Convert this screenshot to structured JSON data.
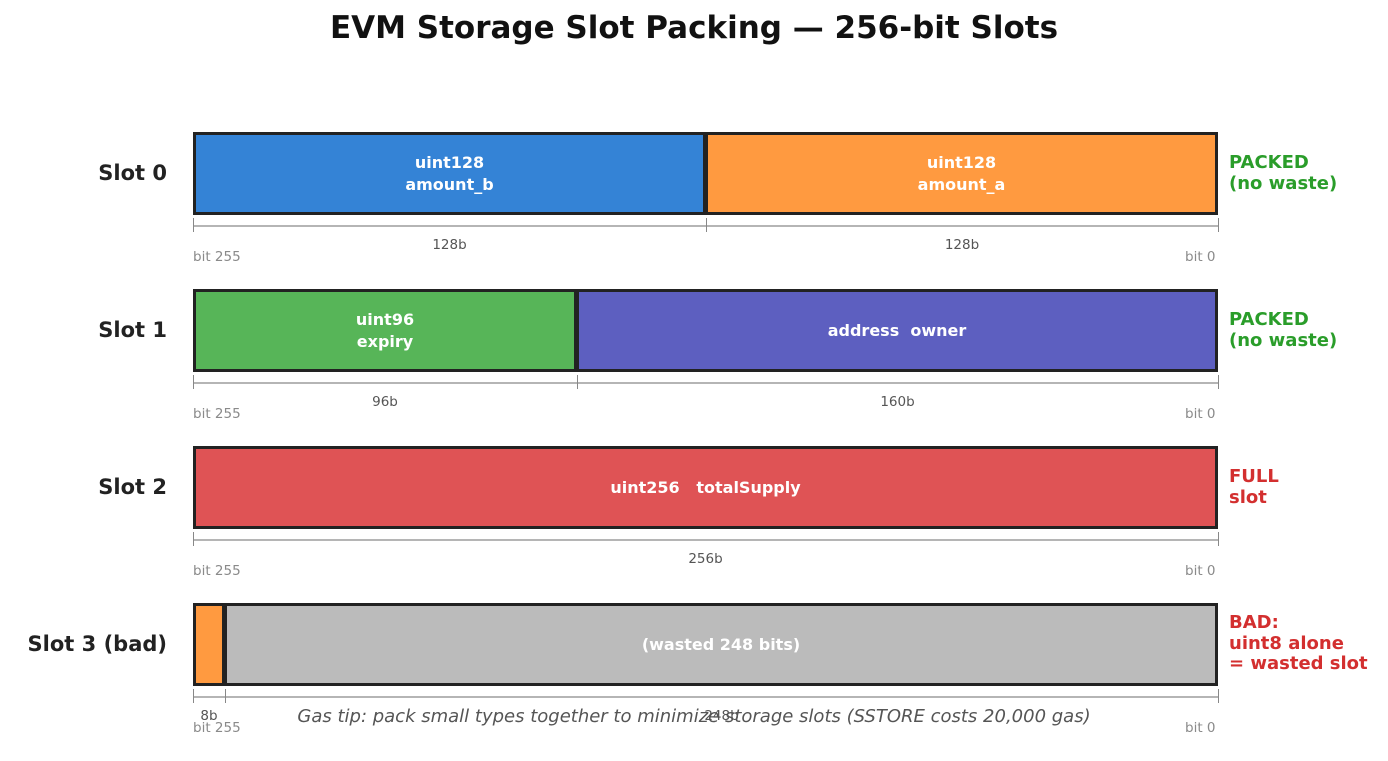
{
  "title": "EVM Storage Slot Packing — 256-bit Slots",
  "footer": "Gas tip: pack small types together to minimize storage slots (SSTORE costs 20,000 gas)",
  "bit_high": "bit 255",
  "bit_low": "bit 0",
  "slots": [
    {
      "label": "Slot 0",
      "status": "PACKED\n(no waste)",
      "status_color": "#2a9d2a",
      "segments": [
        {
          "text": "uint128\namount_b",
          "bits": 128,
          "bits_label": "128b",
          "color": "#3483d6"
        },
        {
          "text": "uint128\namount_a",
          "bits": 128,
          "bits_label": "128b",
          "color": "#ff9a40"
        }
      ]
    },
    {
      "label": "Slot 1",
      "status": "PACKED\n(no waste)",
      "status_color": "#2a9d2a",
      "segments": [
        {
          "text": "uint96\nexpiry",
          "bits": 96,
          "bits_label": "96b",
          "color": "#57b558"
        },
        {
          "text": "address  owner",
          "bits": 160,
          "bits_label": "160b",
          "color": "#5d5fc0"
        }
      ]
    },
    {
      "label": "Slot 2",
      "status": "FULL\nslot",
      "status_color": "#d32f2f",
      "segments": [
        {
          "text": "uint256   totalSupply",
          "bits": 256,
          "bits_label": "256b",
          "color": "#df5355"
        }
      ]
    },
    {
      "label": "Slot 3 (bad)",
      "status": "BAD:\nuint8 alone\n= wasted slot",
      "status_color": "#d32f2f",
      "segments": [
        {
          "text": "",
          "bits": 8,
          "bits_label": "8b",
          "color": "#ff9a40"
        },
        {
          "text": "(wasted 248 bits)",
          "bits": 248,
          "bits_label": "248b",
          "color": "#bbbbbb"
        }
      ]
    }
  ]
}
